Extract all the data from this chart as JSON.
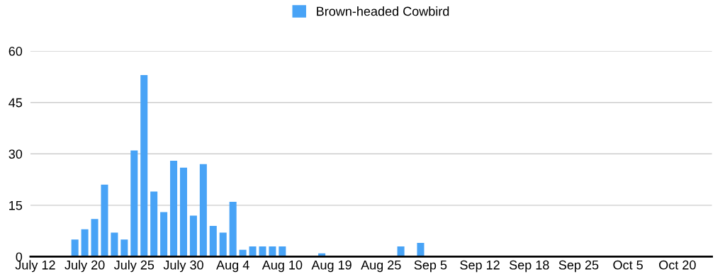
{
  "chart_data": {
    "type": "bar",
    "categories": [
      "July 12",
      null,
      null,
      null,
      null,
      "July 20",
      null,
      null,
      null,
      null,
      "July 25",
      null,
      null,
      null,
      null,
      "July 30",
      null,
      null,
      null,
      null,
      "Aug 4",
      null,
      null,
      null,
      null,
      "Aug 10",
      null,
      null,
      null,
      null,
      "Aug 19",
      null,
      null,
      null,
      null,
      "Aug 25",
      null,
      null,
      null,
      null,
      "Sep 5",
      null,
      null,
      null,
      null,
      "Sep 12",
      null,
      null,
      null,
      null,
      "Sep 18",
      null,
      null,
      null,
      null,
      "Sep 25",
      null,
      null,
      null,
      null,
      "Oct 5",
      null,
      null,
      null,
      null,
      "Oct 20",
      null,
      null,
      null
    ],
    "series": [
      {
        "name": "Brown-headed Cowbird",
        "color": "#48a3f6",
        "values": [
          0,
          0,
          0,
          0,
          5,
          8,
          11,
          21,
          7,
          5,
          31,
          53,
          19,
          13,
          28,
          26,
          12,
          27,
          9,
          7,
          16,
          2,
          3,
          3,
          3,
          3,
          0,
          0,
          0,
          1,
          0,
          0,
          0,
          0,
          0,
          0,
          0,
          3,
          0,
          4,
          0,
          0,
          0,
          0,
          0,
          0,
          0,
          0,
          0,
          0,
          0,
          0,
          0,
          0,
          0,
          0,
          0,
          0,
          0,
          0,
          0,
          0,
          0,
          0,
          0,
          0,
          0,
          0,
          0
        ]
      }
    ],
    "ylim": [
      0,
      60
    ],
    "yticks": [
      0,
      15,
      30,
      45,
      60
    ],
    "grid": "y",
    "legend": "top"
  }
}
